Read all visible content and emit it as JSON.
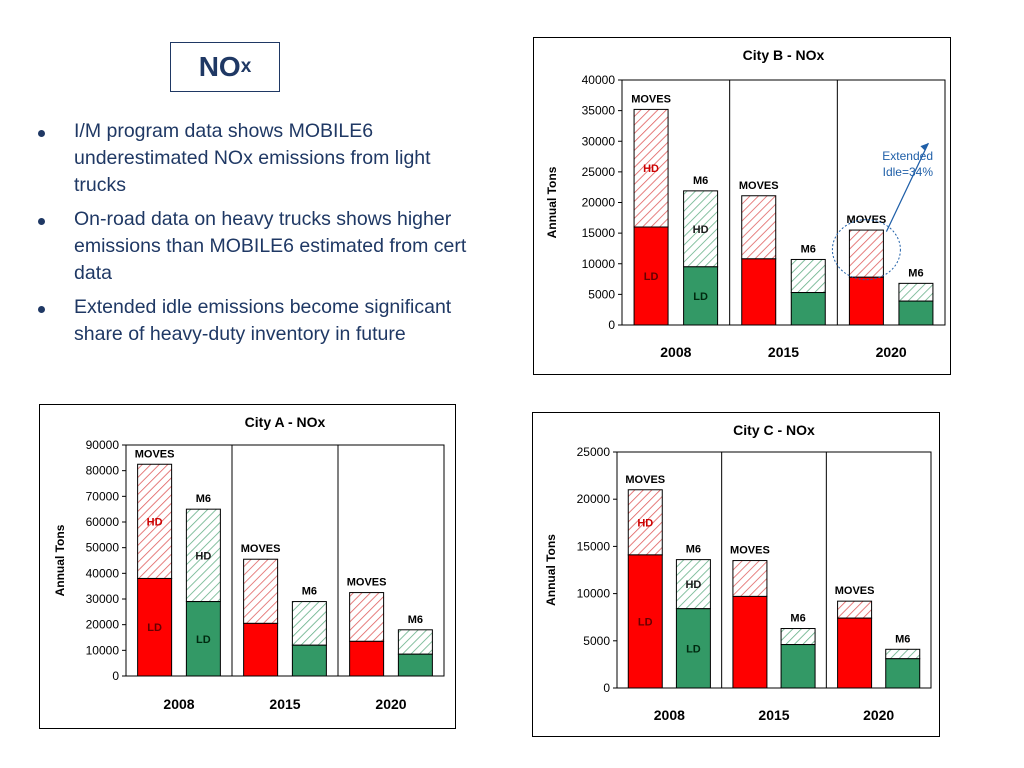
{
  "slide": {
    "title_main": "NO",
    "title_sub": "x",
    "bullets": [
      "I/M program data shows MOBILE6 underestimated NOx emissions from light trucks",
      "On-road data on heavy trucks shows higher emissions than MOBILE6 estimated from cert data",
      "Extended idle emissions become significant share of heavy-duty inventory in future"
    ]
  },
  "colors": {
    "moves_ld": "#ff0000",
    "moves_hd_stripe": "#e06060",
    "m6_ld": "#339966",
    "m6_hd_stripe": "#66b088",
    "text": "#1f3864",
    "annotation": "#1f5fa8",
    "ld_label": "#cc0000",
    "hd_label": "#cc0000"
  },
  "chart_data": [
    {
      "id": "city-a",
      "type": "bar",
      "stacked": true,
      "title": "City A - NOx",
      "ylabel": "Annual Tons",
      "ylim": [
        0,
        90000
      ],
      "yticks": [
        0,
        10000,
        20000,
        30000,
        40000,
        50000,
        60000,
        70000,
        80000,
        90000
      ],
      "groups": [
        "2008",
        "2015",
        "2020"
      ],
      "bars": [
        {
          "model": "MOVES",
          "group": "2008",
          "ld": 38000,
          "total": 82500,
          "label": "MOVES",
          "ld_label": "LD",
          "hd_label": "HD"
        },
        {
          "model": "M6",
          "group": "2008",
          "ld": 29000,
          "total": 65000,
          "label": "M6",
          "ld_label": "LD",
          "hd_label": "HD"
        },
        {
          "model": "MOVES",
          "group": "2015",
          "ld": 20500,
          "total": 45500,
          "label": "MOVES"
        },
        {
          "model": "M6",
          "group": "2015",
          "ld": 12000,
          "total": 29000,
          "label": "M6"
        },
        {
          "model": "MOVES",
          "group": "2020",
          "ld": 13500,
          "total": 32500,
          "label": "MOVES"
        },
        {
          "model": "M6",
          "group": "2020",
          "ld": 8500,
          "total": 18000,
          "label": "M6"
        }
      ]
    },
    {
      "id": "city-b",
      "type": "bar",
      "stacked": true,
      "title": "City B - NOx",
      "ylabel": "Annual Tons",
      "ylim": [
        0,
        40000
      ],
      "yticks": [
        0,
        5000,
        10000,
        15000,
        20000,
        25000,
        30000,
        35000,
        40000
      ],
      "groups": [
        "2008",
        "2015",
        "2020"
      ],
      "bars": [
        {
          "model": "MOVES",
          "group": "2008",
          "ld": 16000,
          "total": 35200,
          "label": "MOVES",
          "ld_label": "LD",
          "hd_label": "HD"
        },
        {
          "model": "M6",
          "group": "2008",
          "ld": 9500,
          "total": 21900,
          "label": "M6",
          "ld_label": "LD",
          "hd_label": "HD"
        },
        {
          "model": "MOVES",
          "group": "2015",
          "ld": 10800,
          "total": 21100,
          "label": "MOVES"
        },
        {
          "model": "M6",
          "group": "2015",
          "ld": 5300,
          "total": 10700,
          "label": "M6"
        },
        {
          "model": "MOVES",
          "group": "2020",
          "ld": 7800,
          "total": 15500,
          "label": "MOVES"
        },
        {
          "model": "M6",
          "group": "2020",
          "ld": 3900,
          "total": 6800,
          "label": "M6"
        }
      ],
      "annotation": "Extended Idle=34%"
    },
    {
      "id": "city-c",
      "type": "bar",
      "stacked": true,
      "title": "City C  - NOx",
      "ylabel": "Annual Tons",
      "ylim": [
        0,
        25000
      ],
      "yticks": [
        0,
        5000,
        10000,
        15000,
        20000,
        25000
      ],
      "groups": [
        "2008",
        "2015",
        "2020"
      ],
      "bars": [
        {
          "model": "MOVES",
          "group": "2008",
          "ld": 14100,
          "total": 21000,
          "label": "MOVES",
          "ld_label": "LD",
          "hd_label": "HD"
        },
        {
          "model": "M6",
          "group": "2008",
          "ld": 8400,
          "total": 13600,
          "label": "M6",
          "ld_label": "LD",
          "hd_label": "HD"
        },
        {
          "model": "MOVES",
          "group": "2015",
          "ld": 9700,
          "total": 13500,
          "label": "MOVES"
        },
        {
          "model": "M6",
          "group": "2015",
          "ld": 4600,
          "total": 6300,
          "label": "M6"
        },
        {
          "model": "MOVES",
          "group": "2020",
          "ld": 7400,
          "total": 9200,
          "label": "MOVES"
        },
        {
          "model": "M6",
          "group": "2020",
          "ld": 3100,
          "total": 4100,
          "label": "M6"
        }
      ]
    }
  ]
}
